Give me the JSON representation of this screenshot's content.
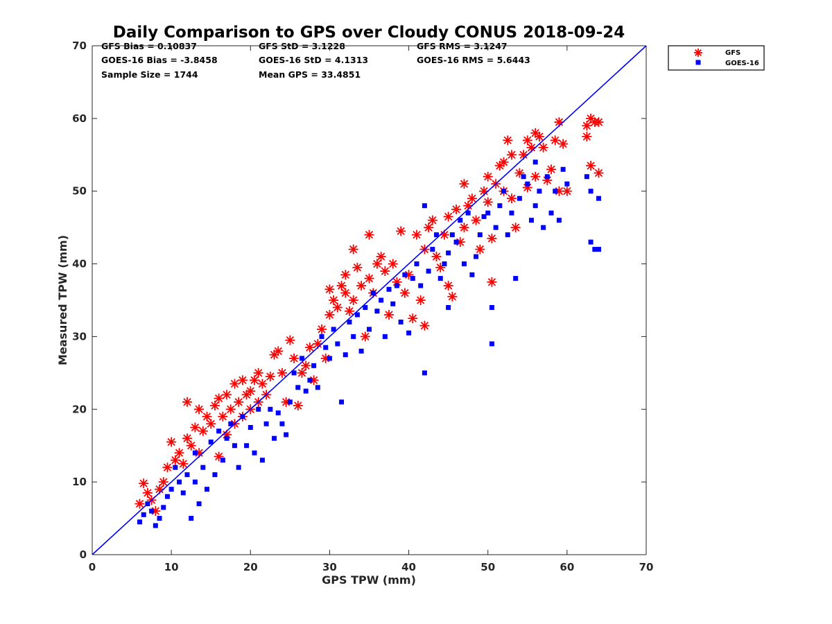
{
  "chart_data": {
    "type": "scatter",
    "title": "Daily Comparison to GPS over Cloudy CONUS 2018-09-24",
    "xlabel": "GPS TPW (mm)",
    "ylabel": "Measured TPW (mm)",
    "xlim": [
      0,
      70
    ],
    "ylim": [
      0,
      70
    ],
    "x_ticks": [
      "0",
      "10",
      "20",
      "30",
      "40",
      "50",
      "60",
      "70"
    ],
    "y_ticks": [
      "0",
      "10",
      "20",
      "30",
      "40",
      "50",
      "60",
      "70"
    ],
    "grid": false,
    "legend_position": "outside-top-right",
    "reference_line": {
      "x": [
        0,
        70
      ],
      "y": [
        0,
        70
      ],
      "color": "#0000ff"
    },
    "stats": [
      "GFS Bias = 0.10837",
      "GFS StD = 3.1228",
      "GFS RMS = 3.1247",
      "GOES-16 Bias = -3.8458",
      "GOES-16 StD = 4.1313",
      "GOES-16 RMS = 5.6443",
      "Sample Size = 1744",
      "Mean GPS = 33.4851"
    ],
    "series": [
      {
        "name": "GFS",
        "marker": "asterisk",
        "color": "#ff0000",
        "points": [
          [
            6,
            7
          ],
          [
            6.5,
            9.8
          ],
          [
            7,
            8.5
          ],
          [
            7.5,
            7.5
          ],
          [
            8,
            6
          ],
          [
            8.5,
            9
          ],
          [
            9,
            10
          ],
          [
            9.5,
            12
          ],
          [
            10,
            15.5
          ],
          [
            10.5,
            13
          ],
          [
            11,
            14
          ],
          [
            11.5,
            12.5
          ],
          [
            12,
            21
          ],
          [
            12,
            16
          ],
          [
            12.5,
            15
          ],
          [
            13,
            17.5
          ],
          [
            13.5,
            20
          ],
          [
            13.5,
            14
          ],
          [
            14,
            17
          ],
          [
            14.5,
            19
          ],
          [
            15,
            18
          ],
          [
            15.5,
            20.5
          ],
          [
            16,
            21.5
          ],
          [
            16,
            13.5
          ],
          [
            16.5,
            19
          ],
          [
            17,
            22
          ],
          [
            17,
            16.5
          ],
          [
            17.5,
            20
          ],
          [
            18,
            23.5
          ],
          [
            18,
            18
          ],
          [
            18.5,
            21
          ],
          [
            19,
            24
          ],
          [
            19,
            19
          ],
          [
            19.5,
            22
          ],
          [
            20,
            22.5
          ],
          [
            20,
            20
          ],
          [
            20.5,
            24
          ],
          [
            21,
            25
          ],
          [
            21,
            21
          ],
          [
            21.5,
            23.5
          ],
          [
            22,
            22
          ],
          [
            22.5,
            24.5
          ],
          [
            23,
            27.5
          ],
          [
            23.5,
            28
          ],
          [
            24,
            25
          ],
          [
            24.5,
            21
          ],
          [
            25,
            29.5
          ],
          [
            25.5,
            27
          ],
          [
            26,
            20.5
          ],
          [
            26.5,
            25
          ],
          [
            27,
            26
          ],
          [
            27.5,
            28.5
          ],
          [
            28,
            24
          ],
          [
            28.5,
            29
          ],
          [
            29,
            31
          ],
          [
            29.5,
            27
          ],
          [
            30,
            33
          ],
          [
            30,
            36.5
          ],
          [
            30.5,
            35
          ],
          [
            31,
            34
          ],
          [
            31.5,
            37
          ],
          [
            32,
            38.5
          ],
          [
            32,
            36
          ],
          [
            32.5,
            33.5
          ],
          [
            33,
            42
          ],
          [
            33,
            35
          ],
          [
            33.5,
            39.5
          ],
          [
            34,
            37
          ],
          [
            34.5,
            30
          ],
          [
            35,
            44
          ],
          [
            35,
            38
          ],
          [
            35.5,
            36
          ],
          [
            36,
            40
          ],
          [
            36.5,
            41
          ],
          [
            37,
            39
          ],
          [
            37.5,
            33
          ],
          [
            38,
            40
          ],
          [
            38.5,
            37.5
          ],
          [
            39,
            44.5
          ],
          [
            39.5,
            36
          ],
          [
            40,
            38.5
          ],
          [
            40.5,
            32.5
          ],
          [
            41,
            44
          ],
          [
            41.5,
            35
          ],
          [
            42,
            31.5
          ],
          [
            42,
            42
          ],
          [
            42.5,
            45
          ],
          [
            43,
            46
          ],
          [
            43.5,
            41
          ],
          [
            44,
            39.5
          ],
          [
            44.5,
            44
          ],
          [
            45,
            46.5
          ],
          [
            45,
            37
          ],
          [
            45.5,
            35.5
          ],
          [
            46,
            47.5
          ],
          [
            46.5,
            43
          ],
          [
            47,
            51
          ],
          [
            47,
            45
          ],
          [
            47.5,
            48
          ],
          [
            48,
            49
          ],
          [
            48.5,
            46
          ],
          [
            49,
            42
          ],
          [
            49.5,
            50
          ],
          [
            50,
            52
          ],
          [
            50,
            48.5
          ],
          [
            50.5,
            43.5
          ],
          [
            50.5,
            37.5
          ],
          [
            51,
            51
          ],
          [
            51.5,
            53.5
          ],
          [
            52,
            54
          ],
          [
            52,
            50
          ],
          [
            52.5,
            57
          ],
          [
            53,
            49
          ],
          [
            53,
            55
          ],
          [
            53.5,
            45
          ],
          [
            54,
            52.5
          ],
          [
            54.5,
            55
          ],
          [
            55,
            57
          ],
          [
            55,
            50.5
          ],
          [
            55.5,
            56
          ],
          [
            56,
            58
          ],
          [
            56,
            52
          ],
          [
            56.5,
            57.5
          ],
          [
            57,
            56
          ],
          [
            57.5,
            51.5
          ],
          [
            58,
            53
          ],
          [
            58.5,
            57
          ],
          [
            59,
            59.5
          ],
          [
            59,
            50
          ],
          [
            59.5,
            56.5
          ],
          [
            60,
            50
          ],
          [
            62.5,
            57.5
          ],
          [
            62.5,
            59
          ],
          [
            63,
            60
          ],
          [
            63,
            53.5
          ],
          [
            63.5,
            59.5
          ],
          [
            64,
            59.5
          ],
          [
            64,
            52.5
          ]
        ]
      },
      {
        "name": "GOES-16",
        "marker": "square",
        "color": "#0000ff",
        "points": [
          [
            6,
            4.5
          ],
          [
            6.5,
            5.5
          ],
          [
            7,
            7
          ],
          [
            7.5,
            6
          ],
          [
            8,
            4
          ],
          [
            8.5,
            5
          ],
          [
            9,
            6.5
          ],
          [
            9.5,
            8
          ],
          [
            10,
            9
          ],
          [
            10.5,
            12
          ],
          [
            11,
            10
          ],
          [
            11.5,
            8.5
          ],
          [
            12,
            11
          ],
          [
            12.5,
            5
          ],
          [
            13,
            10
          ],
          [
            13,
            14
          ],
          [
            13.5,
            7
          ],
          [
            14,
            12
          ],
          [
            14.5,
            9
          ],
          [
            15,
            15.5
          ],
          [
            15.5,
            11
          ],
          [
            16,
            17
          ],
          [
            16.5,
            13
          ],
          [
            17,
            16
          ],
          [
            17.5,
            18
          ],
          [
            18,
            15
          ],
          [
            18.5,
            12
          ],
          [
            19,
            19
          ],
          [
            19.5,
            15
          ],
          [
            20,
            17.5
          ],
          [
            20.5,
            14
          ],
          [
            21,
            20
          ],
          [
            21.5,
            13
          ],
          [
            22,
            18
          ],
          [
            22.5,
            20
          ],
          [
            23,
            16
          ],
          [
            23.5,
            19.5
          ],
          [
            24,
            18
          ],
          [
            24.5,
            16.5
          ],
          [
            25,
            21
          ],
          [
            25.5,
            25
          ],
          [
            26,
            23
          ],
          [
            26.5,
            27
          ],
          [
            27,
            22.5
          ],
          [
            27.5,
            24
          ],
          [
            28,
            26
          ],
          [
            28.5,
            23
          ],
          [
            29,
            30
          ],
          [
            29.5,
            28.5
          ],
          [
            30,
            27
          ],
          [
            30.5,
            31
          ],
          [
            31,
            29
          ],
          [
            31.5,
            21
          ],
          [
            32,
            27.5
          ],
          [
            32.5,
            32
          ],
          [
            33,
            30
          ],
          [
            33.5,
            33
          ],
          [
            34,
            28
          ],
          [
            34.5,
            34
          ],
          [
            35,
            31
          ],
          [
            35.5,
            36
          ],
          [
            36,
            33.5
          ],
          [
            36.5,
            35
          ],
          [
            37,
            30
          ],
          [
            37.5,
            36.5
          ],
          [
            38,
            34.5
          ],
          [
            38.5,
            37
          ],
          [
            39,
            32
          ],
          [
            39.5,
            38.5
          ],
          [
            40,
            30.5
          ],
          [
            40.5,
            38
          ],
          [
            41,
            40
          ],
          [
            41.5,
            37
          ],
          [
            42,
            25
          ],
          [
            42,
            48
          ],
          [
            42.5,
            39
          ],
          [
            43,
            42
          ],
          [
            43.5,
            44
          ],
          [
            44,
            38
          ],
          [
            44.5,
            40
          ],
          [
            45,
            41.5
          ],
          [
            45,
            34
          ],
          [
            45.5,
            44
          ],
          [
            46,
            43
          ],
          [
            46.5,
            46
          ],
          [
            47,
            40
          ],
          [
            47.5,
            47
          ],
          [
            48,
            38.5
          ],
          [
            48.5,
            41
          ],
          [
            49,
            44
          ],
          [
            49.5,
            46.5
          ],
          [
            50,
            47
          ],
          [
            50.5,
            29
          ],
          [
            50.5,
            34
          ],
          [
            51,
            45
          ],
          [
            51.5,
            48
          ],
          [
            52,
            50
          ],
          [
            52.5,
            44
          ],
          [
            53,
            47
          ],
          [
            53.5,
            38
          ],
          [
            54,
            49
          ],
          [
            54.5,
            52
          ],
          [
            55,
            51
          ],
          [
            55.5,
            46
          ],
          [
            56,
            54
          ],
          [
            56,
            48
          ],
          [
            56.5,
            50
          ],
          [
            57,
            45
          ],
          [
            57.5,
            52
          ],
          [
            58,
            47
          ],
          [
            58.5,
            50
          ],
          [
            59,
            46
          ],
          [
            59.5,
            53
          ],
          [
            60,
            51
          ],
          [
            62.5,
            52
          ],
          [
            63,
            50
          ],
          [
            63,
            43
          ],
          [
            63.5,
            42
          ],
          [
            64,
            42
          ],
          [
            64,
            49
          ]
        ]
      }
    ]
  }
}
